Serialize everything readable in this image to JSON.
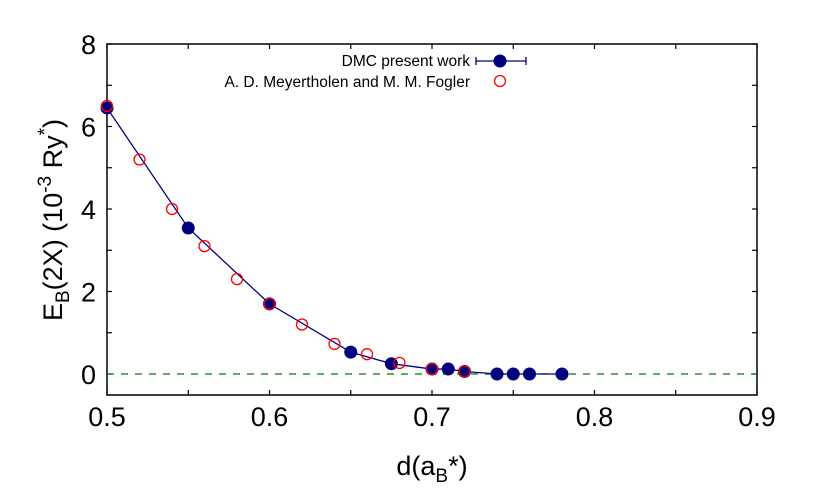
{
  "chart_data": {
    "type": "scatter",
    "title": "",
    "xlabel": "d(a_B*)",
    "ylabel": "E_B(2X) (10^-3 Ry*)",
    "xlabel_parts": {
      "main": "d(a",
      "sub": "B",
      "tail": "*)"
    },
    "ylabel_parts": {
      "main": "E",
      "sub": "B",
      "mid": "(2X) (10",
      "sup": "-3",
      "tail": " Ry",
      "sup2": "*",
      "end": ")"
    },
    "xlim": [
      0.5,
      0.9
    ],
    "ylim": [
      -0.5,
      8
    ],
    "xticks": [
      "0.5",
      "0.6",
      "0.7",
      "0.8",
      "0.9"
    ],
    "yticks": [
      "0",
      "2",
      "4",
      "6",
      "8"
    ],
    "grid": false,
    "legend_position": "top-right",
    "reference_line": {
      "y": 0,
      "style": "dashed",
      "color": "#007a00"
    },
    "series": [
      {
        "name": "DMC present work",
        "marker": "filled-circle",
        "line": true,
        "error_bars": true,
        "color": "#00007f",
        "x": [
          0.5,
          0.55,
          0.6,
          0.65,
          0.675,
          0.7,
          0.71,
          0.72,
          0.74,
          0.75,
          0.76,
          0.78
        ],
        "y": [
          6.45,
          3.54,
          1.7,
          0.53,
          0.25,
          0.12,
          0.12,
          0.06,
          0.0,
          0.0,
          0.0,
          0.0
        ]
      },
      {
        "name": "A. D. Meyertholen and M. M. Fogler",
        "marker": "open-circle",
        "line": false,
        "color": "#ff0000",
        "x": [
          0.5,
          0.52,
          0.54,
          0.56,
          0.58,
          0.6,
          0.62,
          0.64,
          0.66,
          0.68,
          0.7,
          0.72
        ],
        "y": [
          6.5,
          5.2,
          4.0,
          3.1,
          2.3,
          1.7,
          1.2,
          0.73,
          0.48,
          0.27,
          0.12,
          0.06
        ]
      }
    ]
  }
}
